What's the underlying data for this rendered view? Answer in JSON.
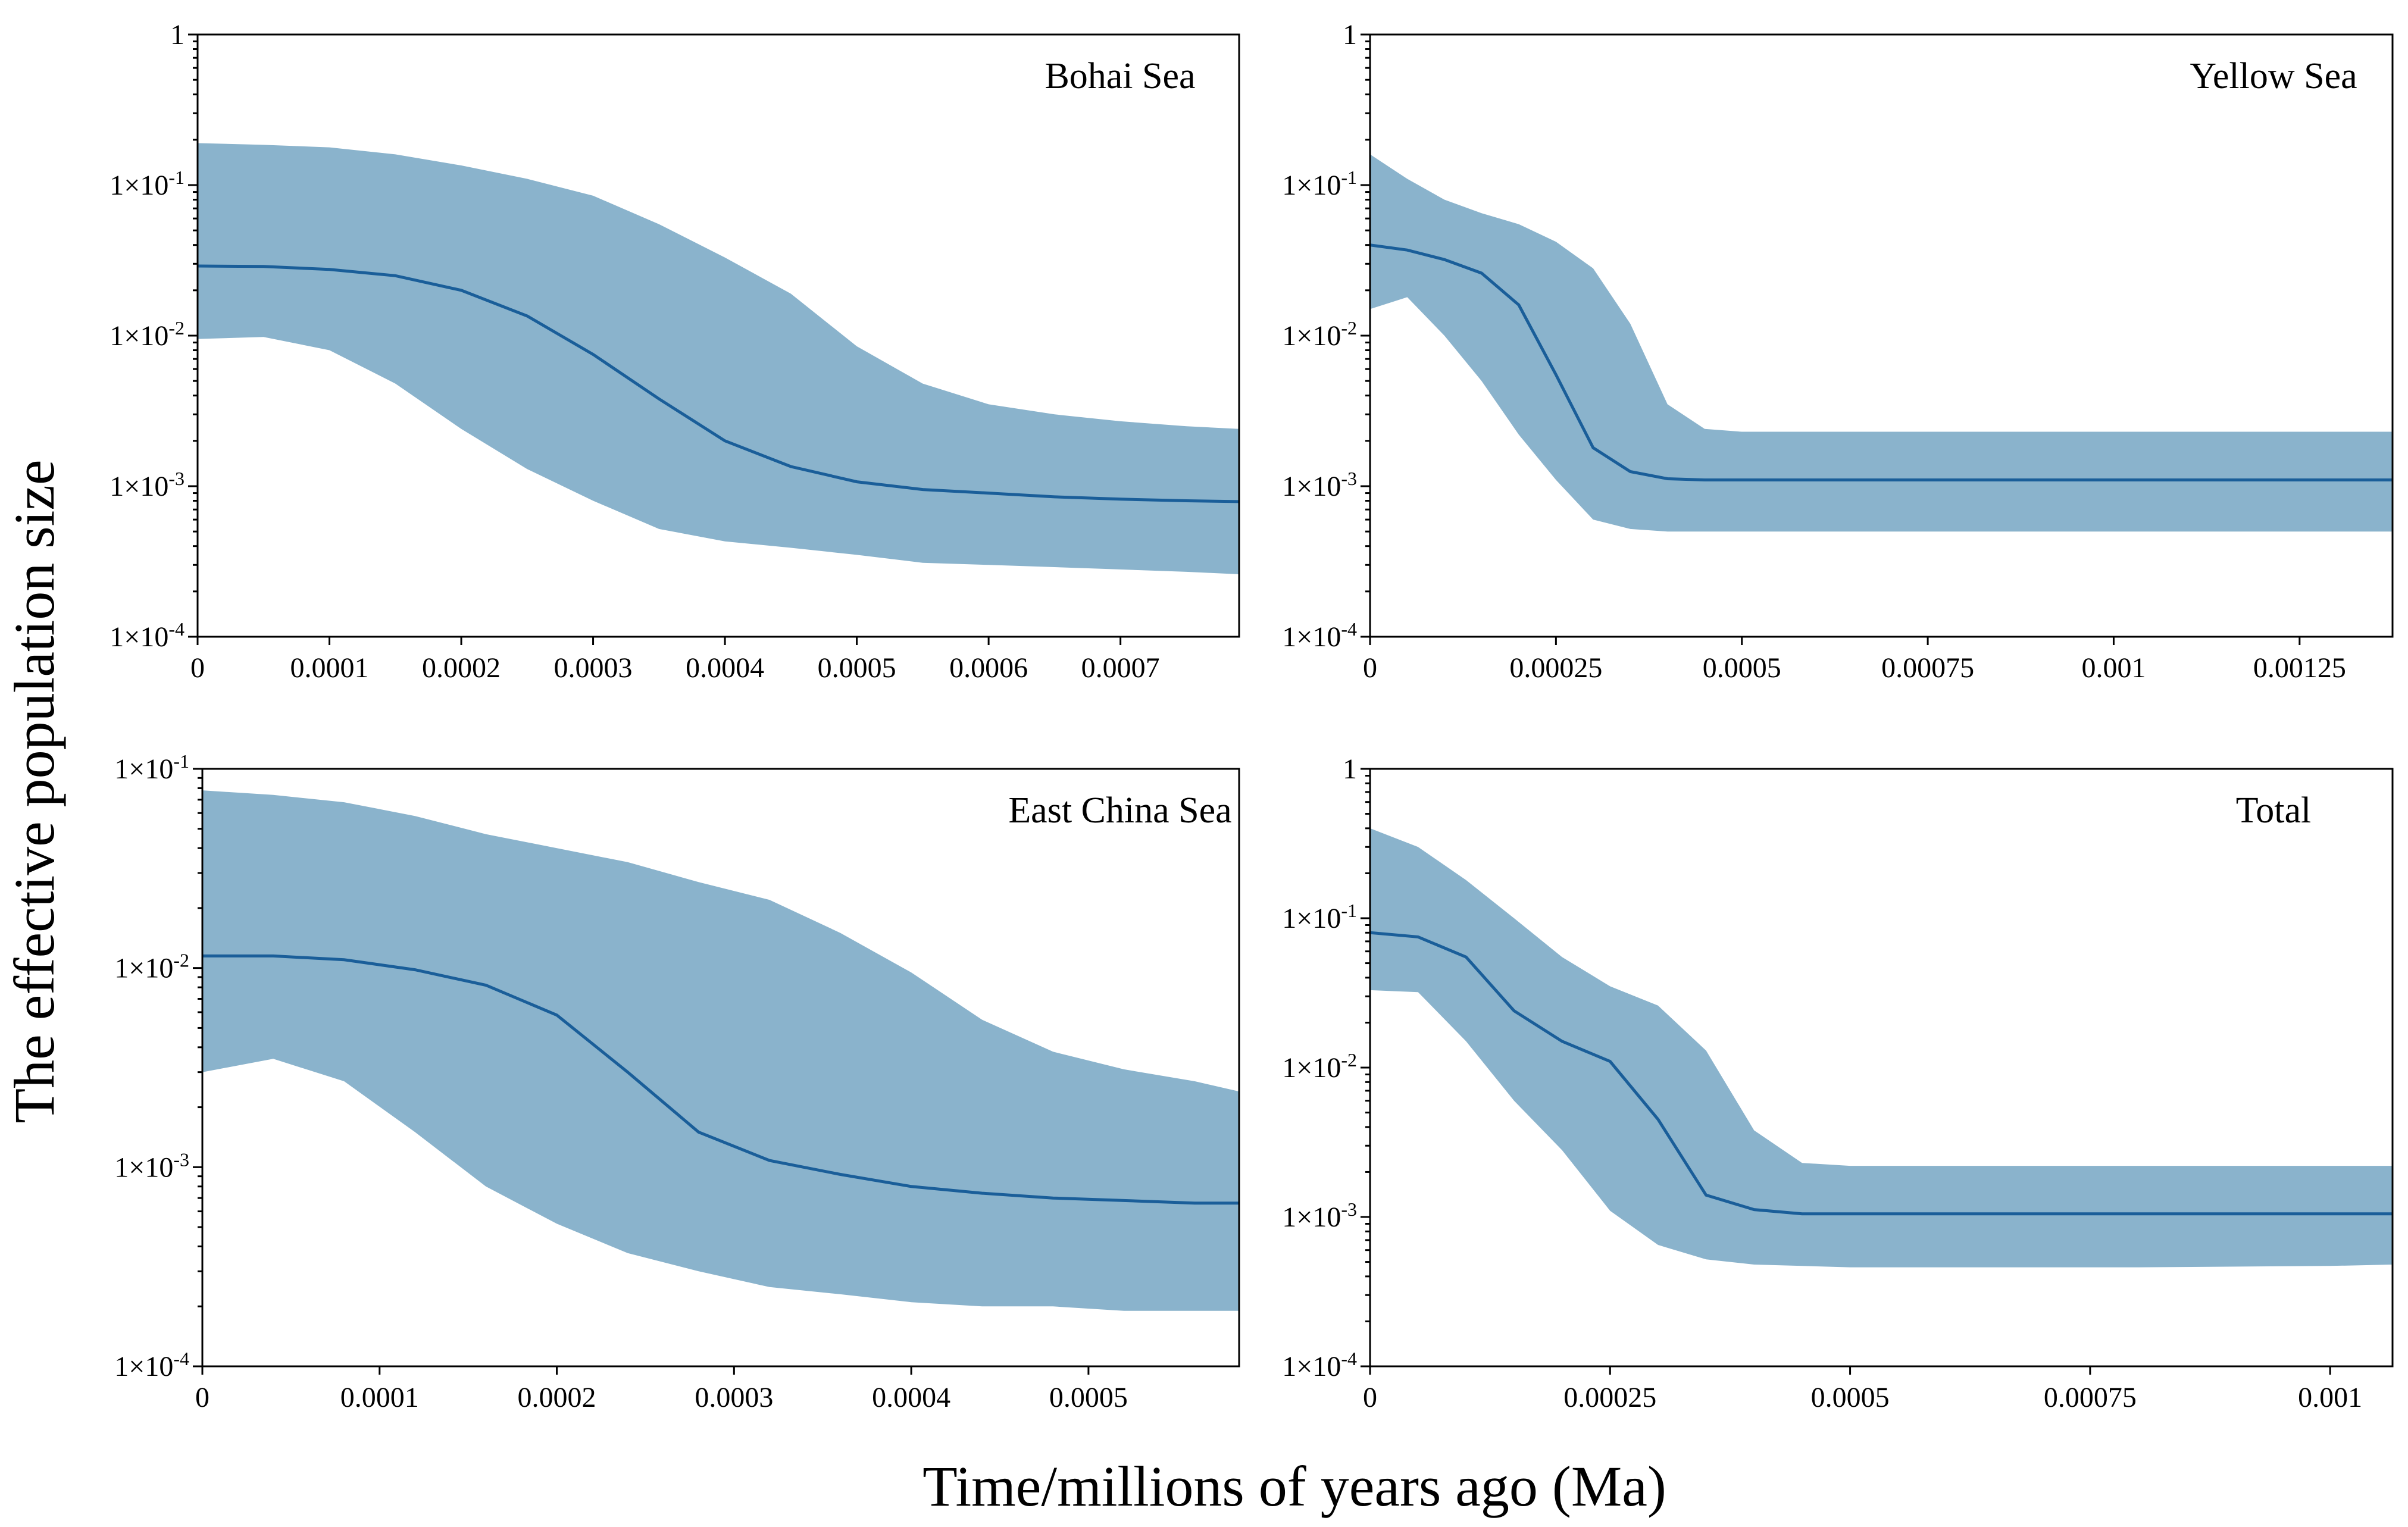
{
  "figure": {
    "ylabel": "The effective population size",
    "xlabel": "Time/millions of years ago (Ma)"
  },
  "colors": {
    "band": "#8ab3cc",
    "median": "#1a5e99",
    "axis": "#000000"
  },
  "chart_data": [
    {
      "type": "area",
      "title": "Bohai Sea",
      "legend_position": "top-right",
      "xlim": [
        0,
        0.00079
      ],
      "ylim": [
        0.0001,
        1
      ],
      "yscale": "log",
      "x_ticks": [
        0,
        0.0001,
        0.0002,
        0.0003,
        0.0004,
        0.0005,
        0.0006,
        0.0007
      ],
      "x_tick_labels": [
        "0",
        "0.0001",
        "0.0002",
        "0.0003",
        "0.0004",
        "0.0005",
        "0.0006",
        "0.0007"
      ],
      "y_ticks": [
        0.0001,
        0.001,
        0.01,
        0.1,
        1
      ],
      "y_tick_labels": [
        {
          "base": "1×10",
          "exp": "-4"
        },
        {
          "base": "1×10",
          "exp": "-3"
        },
        {
          "base": "1×10",
          "exp": "-2"
        },
        {
          "base": "1×10",
          "exp": "-1"
        },
        {
          "base": "1",
          "exp": ""
        }
      ],
      "x": [
        0,
        5e-05,
        0.0001,
        0.00015,
        0.0002,
        0.00025,
        0.0003,
        0.00035,
        0.0004,
        0.00045,
        0.0005,
        0.00055,
        0.0006,
        0.00065,
        0.0007,
        0.00075,
        0.00079
      ],
      "median": [
        0.029,
        0.0288,
        0.0275,
        0.025,
        0.02,
        0.0135,
        0.0075,
        0.0038,
        0.002,
        0.00135,
        0.00107,
        0.00095,
        0.0009,
        0.00085,
        0.00082,
        0.0008,
        0.00079
      ],
      "upper": [
        0.19,
        0.185,
        0.178,
        0.16,
        0.135,
        0.11,
        0.085,
        0.055,
        0.033,
        0.019,
        0.0085,
        0.0048,
        0.0035,
        0.003,
        0.0027,
        0.0025,
        0.0024
      ],
      "lower": [
        0.0095,
        0.0098,
        0.008,
        0.0048,
        0.0024,
        0.0013,
        0.0008,
        0.00052,
        0.00043,
        0.00039,
        0.00035,
        0.00031,
        0.0003,
        0.00029,
        0.00028,
        0.00027,
        0.00026
      ]
    },
    {
      "type": "area",
      "title": "Yellow Sea",
      "legend_position": "top-right",
      "xlim": [
        0,
        0.001375
      ],
      "ylim": [
        0.0001,
        1
      ],
      "yscale": "log",
      "x_ticks": [
        0,
        0.00025,
        0.0005,
        0.00075,
        0.001,
        0.00125
      ],
      "x_tick_labels": [
        "0",
        "0.00025",
        "0.0005",
        "0.00075",
        "0.001",
        "0.00125"
      ],
      "y_ticks": [
        0.0001,
        0.001,
        0.01,
        0.1,
        1
      ],
      "y_tick_labels": [
        {
          "base": "1×10",
          "exp": "-4"
        },
        {
          "base": "1×10",
          "exp": "-3"
        },
        {
          "base": "1×10",
          "exp": "-2"
        },
        {
          "base": "1×10",
          "exp": "-1"
        },
        {
          "base": "1",
          "exp": ""
        }
      ],
      "x": [
        0,
        5e-05,
        0.0001,
        0.00015,
        0.0002,
        0.00025,
        0.0003,
        0.00035,
        0.0004,
        0.00045,
        0.0005,
        0.0006,
        0.0008,
        0.001,
        0.0012,
        0.001375
      ],
      "median": [
        0.04,
        0.037,
        0.032,
        0.026,
        0.016,
        0.0055,
        0.0018,
        0.00125,
        0.00112,
        0.0011,
        0.0011,
        0.0011,
        0.0011,
        0.0011,
        0.0011,
        0.0011
      ],
      "upper": [
        0.16,
        0.11,
        0.08,
        0.065,
        0.055,
        0.042,
        0.028,
        0.012,
        0.0035,
        0.0024,
        0.0023,
        0.0023,
        0.0023,
        0.0023,
        0.0023,
        0.0023
      ],
      "lower": [
        0.015,
        0.018,
        0.01,
        0.005,
        0.0022,
        0.0011,
        0.0006,
        0.00052,
        0.0005,
        0.0005,
        0.0005,
        0.0005,
        0.0005,
        0.0005,
        0.0005,
        0.0005
      ]
    },
    {
      "type": "area",
      "title": "East China Sea",
      "legend_position": "top-right",
      "xlim": [
        0,
        0.000585
      ],
      "ylim": [
        0.0001,
        0.1
      ],
      "yscale": "log",
      "x_ticks": [
        0,
        0.0001,
        0.0002,
        0.0003,
        0.0004,
        0.0005
      ],
      "x_tick_labels": [
        "0",
        "0.0001",
        "0.0002",
        "0.0003",
        "0.0004",
        "0.0005"
      ],
      "y_ticks": [
        0.0001,
        0.001,
        0.01,
        0.1
      ],
      "y_tick_labels": [
        {
          "base": "1×10",
          "exp": "-4"
        },
        {
          "base": "1×10",
          "exp": "-3"
        },
        {
          "base": "1×10",
          "exp": "-2"
        },
        {
          "base": "1×10",
          "exp": "-1"
        }
      ],
      "x": [
        0,
        4e-05,
        8e-05,
        0.00012,
        0.00016,
        0.0002,
        0.00024,
        0.00028,
        0.00032,
        0.00036,
        0.0004,
        0.00044,
        0.00048,
        0.00052,
        0.00056,
        0.000585
      ],
      "median": [
        0.0115,
        0.0115,
        0.011,
        0.0098,
        0.0082,
        0.0058,
        0.003,
        0.0015,
        0.00108,
        0.00092,
        0.0008,
        0.00074,
        0.0007,
        0.00068,
        0.00066,
        0.00066
      ],
      "upper": [
        0.078,
        0.074,
        0.068,
        0.058,
        0.047,
        0.04,
        0.034,
        0.027,
        0.022,
        0.015,
        0.0095,
        0.0055,
        0.0038,
        0.0031,
        0.0027,
        0.0024
      ],
      "lower": [
        0.003,
        0.0035,
        0.0027,
        0.0015,
        0.0008,
        0.00052,
        0.00037,
        0.0003,
        0.00025,
        0.00023,
        0.00021,
        0.0002,
        0.0002,
        0.00019,
        0.00019,
        0.00019
      ]
    },
    {
      "type": "area",
      "title": "Total",
      "legend_position": "top-right",
      "xlim": [
        0,
        0.001065
      ],
      "ylim": [
        0.0001,
        1
      ],
      "yscale": "log",
      "x_ticks": [
        0,
        0.00025,
        0.0005,
        0.00075,
        0.001
      ],
      "x_tick_labels": [
        "0",
        "0.00025",
        "0.0005",
        "0.00075",
        "0.001"
      ],
      "y_ticks": [
        0.0001,
        0.001,
        0.01,
        0.1,
        1
      ],
      "y_tick_labels": [
        {
          "base": "1×10",
          "exp": "-4"
        },
        {
          "base": "1×10",
          "exp": "-3"
        },
        {
          "base": "1×10",
          "exp": "-2"
        },
        {
          "base": "1×10",
          "exp": "-1"
        },
        {
          "base": "1",
          "exp": ""
        }
      ],
      "x": [
        0,
        5e-05,
        0.0001,
        0.00015,
        0.0002,
        0.00025,
        0.0003,
        0.00035,
        0.0004,
        0.00045,
        0.0005,
        0.0006,
        0.0008,
        0.001,
        0.001065
      ],
      "median": [
        0.08,
        0.075,
        0.055,
        0.024,
        0.015,
        0.011,
        0.0045,
        0.0014,
        0.00112,
        0.00105,
        0.00105,
        0.00105,
        0.00105,
        0.00105,
        0.00105
      ],
      "upper": [
        0.4,
        0.3,
        0.18,
        0.1,
        0.055,
        0.035,
        0.026,
        0.013,
        0.0038,
        0.0023,
        0.0022,
        0.0022,
        0.0022,
        0.0022,
        0.0022
      ],
      "lower": [
        0.033,
        0.032,
        0.015,
        0.006,
        0.0028,
        0.0011,
        0.00065,
        0.00052,
        0.00048,
        0.00047,
        0.00046,
        0.00046,
        0.00046,
        0.00047,
        0.00048
      ]
    }
  ]
}
